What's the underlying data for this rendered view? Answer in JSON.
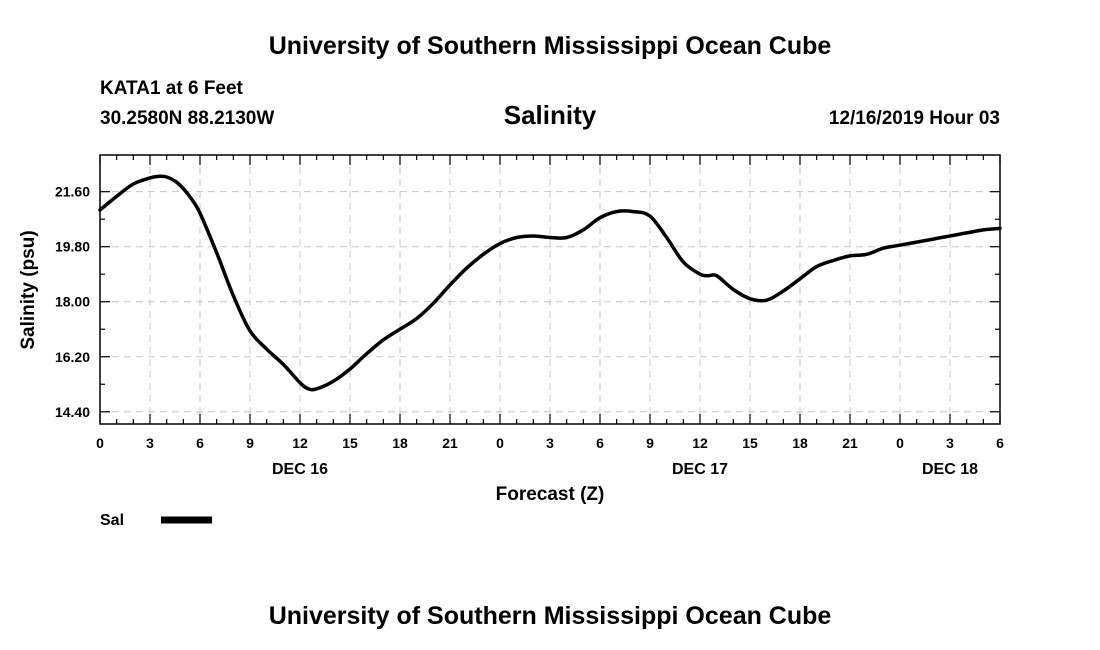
{
  "header": {
    "org_title": "University of Southern Mississippi Ocean Cube",
    "station": "KATA1 at 6 Feet",
    "coords": "30.2580N 88.2130W",
    "datetime": "12/16/2019 Hour 03"
  },
  "footer": {
    "org_title": "University of Southern Mississippi Ocean Cube"
  },
  "legend": {
    "label": "Sal"
  },
  "chart_data": {
    "type": "line",
    "title": "Salinity",
    "xlabel": "Forecast (Z)",
    "ylabel": "Salinity (psu)",
    "xlim": [
      0,
      54
    ],
    "ylim": [
      14.0,
      22.8
    ],
    "grid": true,
    "legend_position": "bottom-left",
    "x_ticks": [
      0,
      3,
      6,
      9,
      12,
      15,
      18,
      21,
      24,
      27,
      30,
      33,
      36,
      39,
      42,
      45,
      48,
      51,
      54
    ],
    "x_tick_labels": [
      "0",
      "3",
      "6",
      "9",
      "12",
      "15",
      "18",
      "21",
      "0",
      "3",
      "6",
      "9",
      "12",
      "15",
      "18",
      "21",
      "0",
      "3",
      "6"
    ],
    "date_labels": [
      {
        "at": 12,
        "text": "DEC 16"
      },
      {
        "at": 36,
        "text": "DEC 17"
      },
      {
        "at": 51,
        "text": "DEC 18"
      }
    ],
    "y_ticks": [
      14.4,
      16.2,
      18.0,
      19.8,
      21.6
    ],
    "y_tick_labels": [
      "14.40",
      "16.20",
      "18.00",
      "19.80",
      "21.60"
    ],
    "series": [
      {
        "name": "Sal",
        "color": "#000000",
        "x": [
          0,
          1,
          2,
          3,
          3.5,
          4,
          4.5,
          5,
          5.5,
          6,
          7,
          8,
          9,
          10,
          11,
          12,
          12.5,
          13,
          14,
          15,
          16,
          17,
          18,
          19,
          20,
          21,
          22,
          23,
          24,
          25,
          26,
          27,
          28,
          29,
          30,
          31,
          32,
          33,
          34,
          35,
          36,
          36.5,
          37,
          38,
          39,
          40,
          41,
          42,
          43,
          44,
          45,
          46,
          47,
          48,
          49,
          50,
          51,
          52,
          53,
          54
        ],
        "y": [
          21.0,
          21.45,
          21.85,
          22.05,
          22.1,
          22.08,
          21.95,
          21.7,
          21.35,
          20.9,
          19.6,
          18.2,
          17.05,
          16.45,
          15.95,
          15.35,
          15.15,
          15.15,
          15.4,
          15.8,
          16.3,
          16.75,
          17.1,
          17.45,
          17.95,
          18.55,
          19.1,
          19.55,
          19.9,
          20.1,
          20.15,
          20.1,
          20.1,
          20.35,
          20.75,
          20.95,
          20.95,
          20.8,
          20.1,
          19.3,
          18.9,
          18.85,
          18.85,
          18.4,
          18.1,
          18.05,
          18.35,
          18.75,
          19.15,
          19.35,
          19.5,
          19.55,
          19.75,
          19.85,
          19.95,
          20.05,
          20.15,
          20.25,
          20.35,
          20.4
        ]
      }
    ]
  }
}
